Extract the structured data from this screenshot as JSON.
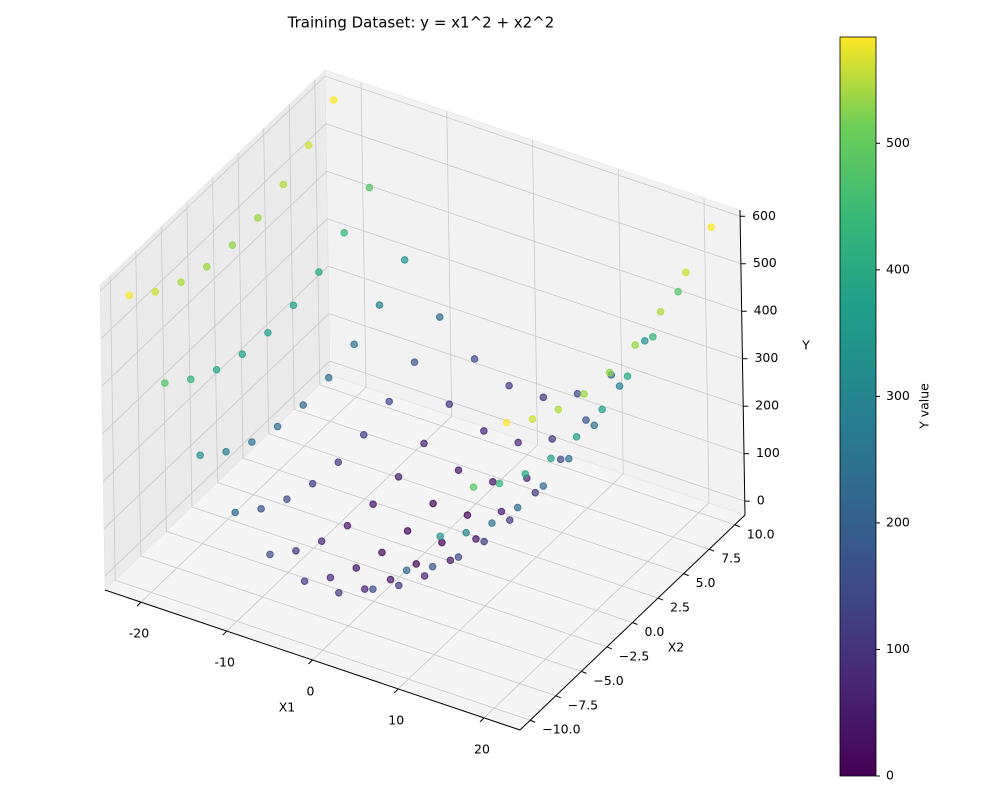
{
  "chart_data": {
    "type": "scatter3d",
    "title": "Training Dataset: y = x1^2 + x2^2",
    "xlabel": "X1",
    "ylabel": "X2",
    "zlabel": "Y",
    "xlim": [
      -24.2,
      24.2
    ],
    "xticks": [
      -20,
      -10,
      0,
      10,
      20
    ],
    "ylim": [
      -11,
      11
    ],
    "yticks": [
      {
        "value": -10,
        "label": "−10.0"
      },
      {
        "value": -7.5,
        "label": "−7.5"
      },
      {
        "value": -5,
        "label": "−5.0"
      },
      {
        "value": -2.5,
        "label": "−2.5"
      },
      {
        "value": 0,
        "label": "0.0"
      },
      {
        "value": 2.5,
        "label": "2.5"
      },
      {
        "value": 5,
        "label": "5.0"
      },
      {
        "value": 7.5,
        "label": "7.5"
      },
      {
        "value": 10,
        "label": "10.0"
      }
    ],
    "zlim": [
      -29.2,
      613.2
    ],
    "zticks": [
      0,
      100,
      200,
      300,
      400,
      500,
      600
    ],
    "grid": true,
    "colormap": "viridis",
    "colorbar": {
      "label": "Y value",
      "clim": [
        0,
        584
      ],
      "ticks": [
        0,
        100,
        200,
        300,
        400,
        500
      ]
    },
    "x": [
      -22,
      -22,
      -22,
      -22,
      -22,
      -22,
      -22,
      -22,
      -22,
      -18,
      -18,
      -18,
      -18,
      -18,
      -18,
      -18,
      -18,
      -18,
      -14,
      -14,
      -14,
      -14,
      -14,
      -14,
      -14,
      -14,
      -14,
      -10,
      -10,
      -10,
      -10,
      -10,
      -10,
      -10,
      -10,
      -10,
      -6,
      -6,
      -6,
      -6,
      -6,
      -6,
      -6,
      -6,
      -6,
      -2,
      -2,
      -2,
      -2,
      -2,
      -2,
      -2,
      -2,
      -2,
      2,
      2,
      2,
      2,
      2,
      2,
      2,
      2,
      2,
      6,
      6,
      6,
      6,
      6,
      6,
      6,
      6,
      6,
      10,
      10,
      10,
      10,
      10,
      10,
      10,
      10,
      10,
      14,
      14,
      14,
      14,
      14,
      14,
      14,
      14,
      14,
      18,
      18,
      18,
      18,
      18,
      18,
      18,
      18,
      18,
      22,
      22,
      22,
      22,
      22,
      22,
      22,
      22,
      22
    ],
    "y": [
      -10,
      -7.5,
      -5,
      -2.5,
      0,
      2.5,
      5,
      7.5,
      10,
      -10,
      -7.5,
      -5,
      -2.5,
      0,
      2.5,
      5,
      7.5,
      10,
      -10,
      -7.5,
      -5,
      -2.5,
      0,
      2.5,
      5,
      7.5,
      10,
      -10,
      -7.5,
      -5,
      -2.5,
      0,
      2.5,
      5,
      7.5,
      10,
      -10,
      -7.5,
      -5,
      -2.5,
      0,
      2.5,
      5,
      7.5,
      10,
      -10,
      -7.5,
      -5,
      -2.5,
      0,
      2.5,
      5,
      7.5,
      10,
      -10,
      -7.5,
      -5,
      -2.5,
      0,
      2.5,
      5,
      7.5,
      10,
      -10,
      -7.5,
      -5,
      -2.5,
      0,
      2.5,
      5,
      7.5,
      10,
      -10,
      -7.5,
      -5,
      -2.5,
      0,
      2.5,
      5,
      7.5,
      10,
      -10,
      -7.5,
      -5,
      -2.5,
      0,
      2.5,
      5,
      7.5,
      10,
      -10,
      -7.5,
      -5,
      -2.5,
      0,
      2.5,
      5,
      7.5,
      10,
      -10,
      -7.5,
      -5,
      -2.5,
      0,
      2.5,
      5,
      7.5,
      10
    ],
    "values": [
      584,
      540.25,
      509,
      490.25,
      484,
      490.25,
      509,
      540.25,
      584,
      424,
      380.25,
      349,
      330.25,
      324,
      330.25,
      349,
      380.25,
      424,
      296,
      252.25,
      221,
      202.25,
      196,
      202.25,
      221,
      252.25,
      296,
      200,
      156.25,
      125,
      106.25,
      100,
      106.25,
      125,
      156.25,
      200,
      136,
      92.25,
      61,
      42.25,
      36,
      42.25,
      61,
      92.25,
      136,
      104,
      60.25,
      29,
      10.25,
      4,
      10.25,
      29,
      60.25,
      104,
      104,
      60.25,
      29,
      10.25,
      4,
      10.25,
      29,
      60.25,
      104,
      136,
      92.25,
      61,
      42.25,
      36,
      42.25,
      61,
      92.25,
      136,
      200,
      156.25,
      125,
      106.25,
      100,
      106.25,
      125,
      156.25,
      200,
      296,
      252.25,
      221,
      202.25,
      196,
      202.25,
      221,
      252.25,
      296,
      424,
      380.25,
      349,
      330.25,
      324,
      330.25,
      349,
      380.25,
      424,
      584,
      540.25,
      509,
      490.25,
      484,
      490.25,
      509,
      540.25,
      584
    ]
  }
}
